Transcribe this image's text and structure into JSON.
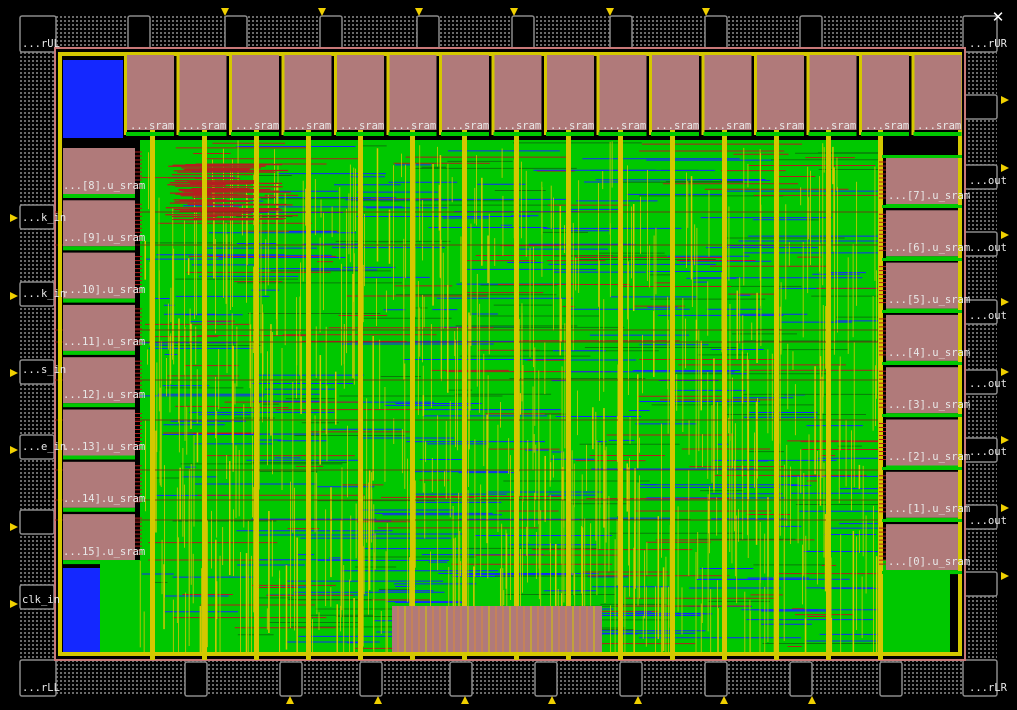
{
  "layout": {
    "background": "#000000",
    "colors": {
      "metal1": "#00c800",
      "metal2": "#d4c800",
      "metal3": "#1428ff",
      "metal4": "#b41e1e",
      "macro": "#b07a7a",
      "pad_ring": "#6a6a6a",
      "pin_marker": "#f0d000",
      "boundary": "#c87878"
    },
    "corners": {
      "ul": "...rUL",
      "ur": "...rUR",
      "ll": "...rLL",
      "lr": "...rLR"
    },
    "left_pads": [
      "...k_in",
      "...k_in",
      "...s_in",
      "...e_in",
      "clk_in"
    ],
    "right_pads": [
      "...out",
      "...out",
      "...out",
      "...out",
      "...out",
      "...out"
    ],
    "top_macro_label": "...sram",
    "left_macros": [
      "...[8].u_sram",
      "...[9].u_sram",
      "...10].u_sram",
      "...11].u_sram",
      "...12].u_sram",
      "...13].u_sram",
      "...14].u_sram",
      "...15].u_sram"
    ],
    "right_macros": [
      "...[7].u_sram",
      "...[6].u_sram",
      "...[5].u_sram",
      "...[4].u_sram",
      "...[3].u_sram",
      "...[2].u_sram",
      "...[1].u_sram",
      "...[0].u_sram"
    ],
    "close_icon": "close-icon",
    "close_glyph": "✕"
  }
}
